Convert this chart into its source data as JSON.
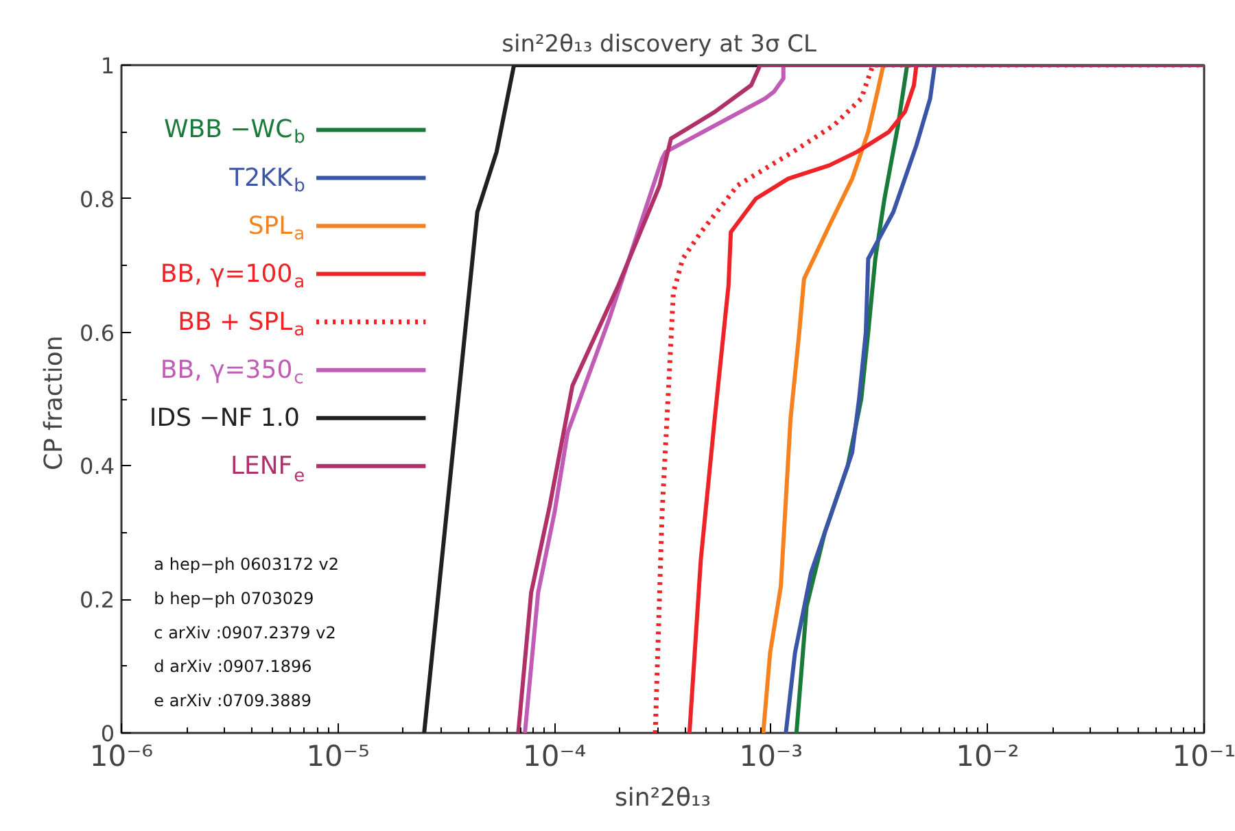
{
  "chart_data": {
    "type": "line",
    "title": "sin²2θ₁₃ discovery  at 3σ CL",
    "xlabel": "sin²2θ₁₃",
    "ylabel": "CP  fraction",
    "log": "x",
    "grid": false,
    "legend": "top left",
    "marker": "none",
    "xlim": [
      1e-06,
      0.1
    ],
    "ylim": [
      0,
      1
    ],
    "xticks": [
      {
        "value": 1e-06,
        "label": "10⁻⁶"
      },
      {
        "value": 1e-05,
        "label": "10⁻⁵"
      },
      {
        "value": 0.0001,
        "label": "10⁻⁴"
      },
      {
        "value": 0.001,
        "label": "10⁻³"
      },
      {
        "value": 0.01,
        "label": "10⁻²"
      },
      {
        "value": 0.1,
        "label": "10⁻¹"
      }
    ],
    "yticks": [
      0,
      0.2,
      0.4,
      0.6,
      0.8,
      1
    ],
    "series": [
      {
        "name": "WBB −WC$_{b}$",
        "color": "#1a7a3a",
        "line_style": "solid",
        "x": [
          0.00131,
          0.00146,
          0.00177,
          0.00226,
          0.00261,
          0.00281,
          0.00303,
          0.00334,
          0.00386,
          0.00425,
          0.1
        ],
        "values": [
          0,
          0.19,
          0.3,
          0.4,
          0.5,
          0.6,
          0.71,
          0.8,
          0.91,
          1,
          1
        ]
      },
      {
        "name": "T2KK$_{b}$",
        "color": "#3a55a8",
        "line_style": "solid",
        "x": [
          0.00117,
          0.00129,
          0.00153,
          0.00237,
          0.00255,
          0.00274,
          0.00281,
          0.00367,
          0.00469,
          0.00543,
          0.0057,
          0.1
        ],
        "values": [
          0,
          0.12,
          0.24,
          0.42,
          0.5,
          0.6,
          0.71,
          0.78,
          0.88,
          0.95,
          1,
          1
        ]
      },
      {
        "name": "SPL$_{a}$",
        "color": "#f5821f",
        "line_style": "solid",
        "x": [
          0.00092,
          0.00099,
          0.00111,
          0.00123,
          0.00135,
          0.00142,
          0.00186,
          0.00237,
          0.00281,
          0.0031,
          0.0033,
          0.1
        ],
        "values": [
          0,
          0.12,
          0.22,
          0.47,
          0.6,
          0.68,
          0.76,
          0.83,
          0.9,
          0.96,
          1,
          1
        ]
      },
      {
        "name": "BB, γ=100$_{a}$",
        "color": "#ee2328",
        "line_style": "solid",
        "x": [
          0.00042,
          0.000474,
          0.000549,
          0.000636,
          0.000652,
          0.000851,
          0.0012,
          0.00186,
          0.00249,
          0.0035,
          0.00415,
          0.00457,
          0.00469,
          0.1
        ],
        "values": [
          0,
          0.26,
          0.47,
          0.67,
          0.75,
          0.8,
          0.83,
          0.85,
          0.87,
          0.9,
          0.93,
          0.97,
          1,
          1
        ]
      },
      {
        "name": "BB + SPL$_{a}$",
        "color": "#ee2328",
        "line_style": "dotted",
        "x": [
          0.000292,
          0.000314,
          0.000338,
          0.000354,
          0.000391,
          0.000475,
          0.000701,
          0.00126,
          0.00195,
          0.00261,
          0.00295,
          0.1
        ],
        "values": [
          0,
          0.33,
          0.53,
          0.66,
          0.71,
          0.75,
          0.82,
          0.87,
          0.91,
          0.95,
          1,
          1
        ]
      },
      {
        "name": "BB, γ=350$_{c}$",
        "color": "#c05cb5",
        "line_style": "solid",
        "x": [
          7.3e-05,
          8.4e-05,
          0.0001,
          0.000115,
          0.000179,
          0.000314,
          0.000326,
          0.000939,
          0.00103,
          0.00114,
          0.00114,
          0.1
        ],
        "values": [
          0,
          0.21,
          0.33,
          0.45,
          0.62,
          0.86,
          0.87,
          0.95,
          0.96,
          0.98,
          1,
          1
        ]
      },
      {
        "name": "IDS −NF  1.0",
        "color": "#231f20",
        "line_style": "solid",
        "x": [
          2.5e-05,
          4.4e-05,
          5.4e-05,
          6.5e-05,
          0.1
        ],
        "values": [
          0,
          0.78,
          0.87,
          1,
          1
        ]
      },
      {
        "name": "LENF$_{e}$",
        "color": "#b0306a",
        "line_style": "solid",
        "x": [
          6.8e-05,
          7.8e-05,
          9.5e-05,
          0.000121,
          0.000197,
          0.000306,
          0.000345,
          0.00055,
          0.00081,
          0.00089,
          0.1
        ],
        "values": [
          0,
          0.21,
          0.34,
          0.52,
          0.67,
          0.82,
          0.89,
          0.93,
          0.97,
          1,
          1
        ]
      }
    ],
    "annotations": [
      "a   hep−ph 0603172 v2",
      "b   hep−ph 0703029",
      "c  arXiv :0907.2379  v2",
      "d   arXiv :0907.1896",
      "e   arXiv :0709.3889"
    ]
  }
}
